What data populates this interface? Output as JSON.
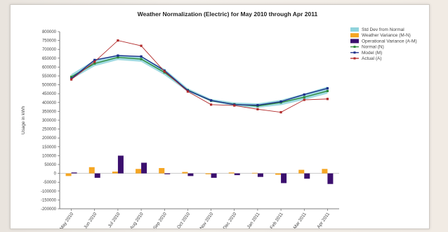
{
  "chart_data": {
    "type": "bar",
    "title": "Weather Normalization (Electric) for May 2010 through Apr 2011",
    "xlabel": "",
    "ylabel": "Usage in kWh",
    "ylim": [
      -200000,
      800000
    ],
    "yticks": [
      800000,
      750000,
      700000,
      650000,
      600000,
      550000,
      500000,
      450000,
      400000,
      350000,
      300000,
      250000,
      200000,
      150000,
      100000,
      50000,
      0,
      -50000,
      -100000,
      -150000,
      -200000
    ],
    "ytick_labels": [
      "800000",
      "750000",
      "700000",
      "650000",
      "600000",
      "550000",
      "500000",
      "450000",
      "400000",
      "350000",
      "300000",
      "250000",
      "200000",
      "150000",
      "100000",
      "50000",
      "0",
      "-50000",
      "-100000",
      "-150000",
      "-200000"
    ],
    "grid": false,
    "legend_position": "right",
    "categories": [
      "May 2010",
      "Jun 2010",
      "Jul 2010",
      "Aug 2010",
      "Sep 2010",
      "Oct 2010",
      "Nov 2010",
      "Dec 2010",
      "Jan 2011",
      "Feb 2011",
      "Mar 2011",
      "Apr 2011"
    ],
    "series": [
      {
        "name": "Std Dev from Normal",
        "kind": "band",
        "color": "#8fd3dc",
        "lower": [
          530000,
          605000,
          640000,
          630000,
          555000,
          460000,
          405000,
          380000,
          370000,
          385000,
          415000,
          450000
        ],
        "upper": [
          560000,
          640000,
          670000,
          660000,
          590000,
          480000,
          420000,
          400000,
          395000,
          415000,
          450000,
          490000
        ]
      },
      {
        "name": "Weather Variance (M-N)",
        "kind": "bar",
        "color": "#f5a623",
        "values": [
          -15000,
          35000,
          10000,
          25000,
          30000,
          8000,
          -5000,
          5000,
          3000,
          -8000,
          20000,
          25000
        ]
      },
      {
        "name": "Operational Variance (A-M)",
        "kind": "bar",
        "color": "#3b0f6e",
        "values": [
          5000,
          -25000,
          100000,
          60000,
          -5000,
          -15000,
          -25000,
          -10000,
          -20000,
          -55000,
          -30000,
          -60000
        ]
      },
      {
        "name": "Normal (N)",
        "kind": "line",
        "color": "#2e8b3a",
        "values": [
          545000,
          620000,
          655000,
          645000,
          570000,
          470000,
          410000,
          390000,
          380000,
          400000,
          430000,
          465000
        ]
      },
      {
        "name": "Model (M)",
        "kind": "line",
        "color": "#1d2f8a",
        "values": [
          535000,
          640000,
          665000,
          660000,
          580000,
          468000,
          412000,
          388000,
          385000,
          405000,
          445000,
          480000
        ]
      },
      {
        "name": "Actual (A)",
        "kind": "line",
        "color": "#b22a2a",
        "values": [
          530000,
          630000,
          750000,
          720000,
          575000,
          462000,
          388000,
          383000,
          362000,
          345000,
          415000,
          420000
        ]
      }
    ]
  }
}
